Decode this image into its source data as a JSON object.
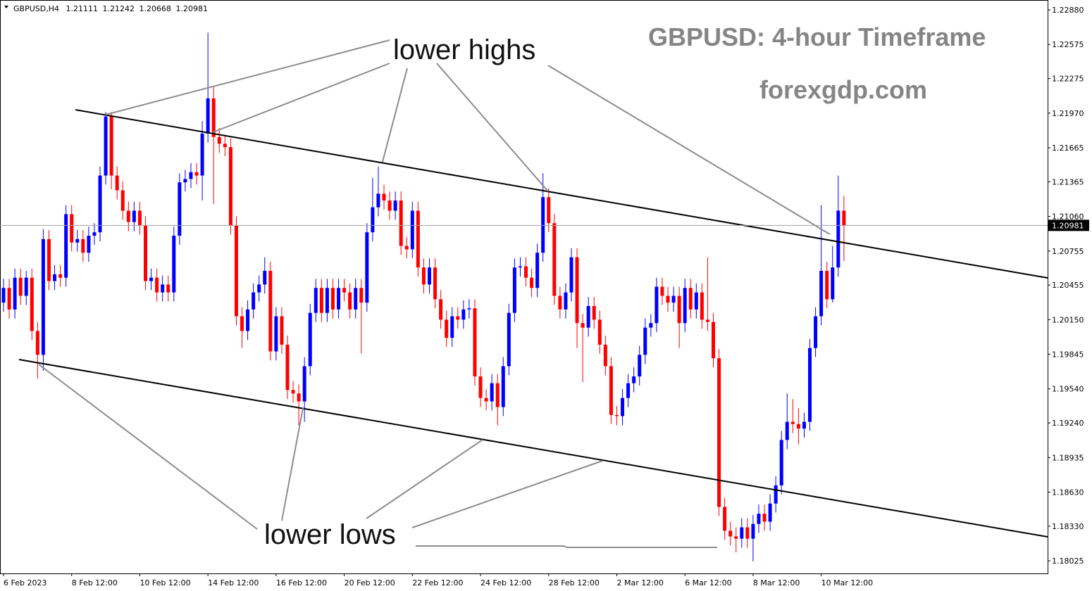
{
  "header": {
    "symbol": "GBPUSD,H4",
    "ohlc": [
      1.21111,
      1.21242,
      1.20668,
      1.20981
    ]
  },
  "chart_data": {
    "type": "candlestick",
    "title": "GBPUSD: 4-hour Timeframe",
    "subtitle": "forexgdp.com",
    "annotations": [
      "lower highs",
      "lower lows"
    ],
    "colors": {
      "up": "#0000ff",
      "down": "#ff0000"
    },
    "grid": false,
    "last_price": 1.20981,
    "ylim": [
      1.17914,
      1.22967
    ],
    "yticks": [
      {
        "value": 1.2288,
        "label": "1.22880"
      },
      1.22575,
      1.22275,
      {
        "value": 1.2197,
        "label": "1.21970"
      },
      1.21665,
      1.21365,
      {
        "value": 1.2106,
        "label": "1.21060"
      },
      1.20755,
      1.20455,
      {
        "value": 1.2015,
        "label": "1.20150"
      },
      1.19845,
      {
        "value": 1.1954,
        "label": "1.19540"
      },
      {
        "value": 1.1924,
        "label": "1.19240"
      },
      1.18935,
      {
        "value": 1.1863,
        "label": "1.18630"
      },
      {
        "value": 1.1833,
        "label": "1.18330"
      },
      1.18025
    ],
    "categories": [
      "6 Feb 2023",
      null,
      null,
      null,
      null,
      null,
      null,
      null,
      null,
      null,
      null,
      null,
      "8 Feb 12:00",
      null,
      null,
      null,
      null,
      null,
      null,
      null,
      null,
      null,
      null,
      null,
      "10 Feb 12:00",
      null,
      null,
      null,
      null,
      null,
      null,
      null,
      null,
      null,
      null,
      null,
      "14 Feb 12:00",
      null,
      null,
      null,
      null,
      null,
      null,
      null,
      null,
      null,
      null,
      null,
      "16 Feb 12:00",
      null,
      null,
      null,
      null,
      null,
      null,
      null,
      null,
      null,
      null,
      null,
      "20 Feb 12:00",
      null,
      null,
      null,
      null,
      null,
      null,
      null,
      null,
      null,
      null,
      null,
      "22 Feb 12:00",
      null,
      null,
      null,
      null,
      null,
      null,
      null,
      null,
      null,
      null,
      null,
      "24 Feb 12:00",
      null,
      null,
      null,
      null,
      null,
      null,
      null,
      null,
      null,
      null,
      null,
      "28 Feb 12:00",
      null,
      null,
      null,
      null,
      null,
      null,
      null,
      null,
      null,
      null,
      null,
      "2 Mar 12:00",
      null,
      null,
      null,
      null,
      null,
      null,
      null,
      null,
      null,
      null,
      null,
      "6 Mar 12:00",
      null,
      null,
      null,
      null,
      null,
      null,
      null,
      null,
      null,
      null,
      null,
      "8 Mar 12:00",
      null,
      null,
      null,
      null,
      null,
      null,
      null,
      null,
      null,
      null,
      null,
      "10 Mar 12:00",
      null,
      null,
      null,
      null
    ],
    "open": [
      1.203,
      1.2043,
      1.2024,
      1.2052,
      1.2036,
      1.2052,
      1.2005,
      1.1984,
      1.2086,
      1.2049,
      1.2055,
      1.2052,
      1.2108,
      1.2083,
      1.2086,
      1.2074,
      1.2089,
      1.2092,
      1.2142,
      1.2194,
      1.2142,
      1.2129,
      1.2111,
      1.2101,
      1.2111,
      1.2098,
      1.2049,
      1.2052,
      1.2039,
      1.2046,
      1.2039,
      1.2089,
      1.2136,
      1.2139,
      1.2145,
      1.2142,
      1.2179,
      1.221,
      1.2176,
      1.217,
      1.2167,
      1.2098,
      1.2018,
      1.2005,
      1.2024,
      1.2039,
      1.2046,
      1.2058,
      1.1987,
      1.2018,
      1.1993,
      1.1953,
      1.195,
      1.1943,
      1.1974,
      1.2021,
      1.2043,
      1.2021,
      1.2043,
      1.2024,
      1.2043,
      1.2039,
      1.2024,
      1.2043,
      1.203,
      1.2092,
      1.2114,
      1.2126,
      1.212,
      1.2111,
      1.212,
      1.208,
      1.2077,
      1.2111,
      1.2061,
      1.2046,
      1.2061,
      1.2033,
      1.2015,
      1.1999,
      1.2018,
      1.2015,
      1.2024,
      1.2025,
      1.1965,
      1.1946,
      1.1943,
      1.1959,
      1.1938,
      1.1974,
      1.2021,
      1.2061,
      1.2062,
      1.2052,
      1.2043,
      1.2074,
      1.2123,
      1.21,
      1.2036,
      1.2024,
      1.2039,
      1.207,
      1.2012,
      1.2008,
      1.2027,
      1.2015,
      1.1993,
      1.1974,
      1.1931,
      1.193,
      1.1946,
      1.1959,
      1.1965,
      1.1984,
      1.2008,
      1.2012,
      1.2044,
      1.2036,
      1.203,
      1.2036,
      1.2012,
      1.2043,
      1.2024,
      1.2039,
      1.2015,
      1.2013,
      1.1981,
      1.185,
      1.1829,
      1.1824,
      1.1822,
      1.1832,
      1.1822,
      1.1835,
      1.1844,
      1.1837,
      1.1853,
      1.1869,
      1.1909,
      1.1925,
      1.1923,
      1.1919,
      1.1925,
      1.199,
      1.2018,
      1.2058,
      1.2033,
      1.2061,
      1.21111
    ],
    "high": [
      1.2051,
      1.2051,
      1.206,
      1.206,
      1.2058,
      1.206,
      1.2013,
      1.2095,
      1.2094,
      1.2063,
      1.2063,
      1.2116,
      1.2116,
      1.2094,
      1.2094,
      1.2097,
      1.21,
      1.215,
      1.2198,
      1.2198,
      1.215,
      1.2137,
      1.2119,
      1.2119,
      1.2119,
      1.2106,
      1.206,
      1.206,
      1.2054,
      1.2054,
      1.2097,
      1.2144,
      1.2147,
      1.2153,
      1.2153,
      1.219,
      1.2268,
      1.222,
      1.2184,
      1.2178,
      1.2175,
      1.2106,
      1.2026,
      1.2032,
      1.2047,
      1.2054,
      1.207,
      1.2066,
      1.2026,
      1.2026,
      1.2001,
      1.1961,
      1.1958,
      1.1982,
      1.2029,
      1.2051,
      1.2051,
      1.2051,
      1.2051,
      1.2051,
      1.2051,
      1.2047,
      1.2051,
      1.2051,
      1.21,
      1.214,
      1.215,
      1.2134,
      1.2128,
      1.2128,
      1.2128,
      1.2088,
      1.2119,
      1.2119,
      1.2069,
      1.2069,
      1.2069,
      1.2041,
      1.2023,
      1.2026,
      1.2026,
      1.2032,
      1.2033,
      1.2033,
      1.1973,
      1.1954,
      1.1967,
      1.1967,
      1.1982,
      1.2029,
      1.2069,
      1.207,
      1.207,
      1.206,
      1.2082,
      1.2144,
      1.2131,
      1.2108,
      1.2044,
      1.2047,
      1.2078,
      1.2078,
      1.202,
      1.2035,
      1.2035,
      1.2023,
      1.2001,
      1.1982,
      1.1939,
      1.1954,
      1.1967,
      1.1973,
      1.1992,
      1.2016,
      1.202,
      1.2052,
      1.2052,
      1.2044,
      1.2044,
      1.2044,
      1.2051,
      1.2051,
      1.2047,
      1.2047,
      1.207,
      1.2021,
      1.1989,
      1.1858,
      1.1837,
      1.1832,
      1.184,
      1.184,
      1.1843,
      1.1852,
      1.1852,
      1.1861,
      1.1877,
      1.1917,
      1.195,
      1.1945,
      1.1937,
      1.1933,
      1.1998,
      1.2026,
      1.2116,
      1.2066,
      1.208,
      1.2142,
      1.21242
    ],
    "low": [
      1.2022,
      1.2016,
      1.2016,
      1.2028,
      1.2028,
      1.1997,
      1.1963,
      1.197,
      1.2041,
      1.2041,
      1.2044,
      1.2044,
      1.2075,
      1.2075,
      1.2066,
      1.2066,
      1.2081,
      1.2084,
      1.2134,
      1.213,
      1.2121,
      1.2103,
      1.2093,
      1.2093,
      1.209,
      1.2041,
      1.2041,
      1.2031,
      1.2031,
      1.2031,
      1.2031,
      1.2081,
      1.2128,
      1.2131,
      1.2134,
      1.212,
      1.2171,
      1.2117,
      1.2162,
      1.2159,
      1.209,
      1.201,
      1.199,
      1.1997,
      1.2016,
      1.2031,
      1.2038,
      1.1979,
      1.1979,
      1.1985,
      1.1945,
      1.1942,
      1.1922,
      1.1925,
      1.1966,
      1.2013,
      1.2013,
      1.2013,
      1.2016,
      1.2016,
      1.2031,
      1.2016,
      1.2016,
      1.1985,
      1.2022,
      1.2084,
      1.2106,
      1.2112,
      1.2103,
      1.2103,
      1.2072,
      1.2069,
      1.2069,
      1.2053,
      1.2038,
      1.2038,
      1.2025,
      1.2007,
      1.1991,
      1.1991,
      1.2007,
      1.2007,
      1.2016,
      1.1957,
      1.1938,
      1.1935,
      1.1935,
      1.1922,
      1.193,
      1.1966,
      1.2013,
      1.2053,
      1.2044,
      1.2035,
      1.2035,
      1.2066,
      1.2092,
      1.2028,
      1.2016,
      1.2016,
      1.2031,
      1.199,
      1.196,
      1.2,
      1.2007,
      1.1985,
      1.1966,
      1.1923,
      1.1922,
      1.1922,
      1.1938,
      1.1951,
      1.1957,
      1.1976,
      1.2,
      1.2004,
      1.2028,
      1.2022,
      1.2022,
      1.199,
      1.2004,
      1.2016,
      1.2016,
      1.2007,
      1.2005,
      1.1973,
      1.1842,
      1.1821,
      1.1816,
      1.181,
      1.1814,
      1.1814,
      1.1802,
      1.1827,
      1.1829,
      1.1829,
      1.1845,
      1.1861,
      1.1901,
      1.1915,
      1.1905,
      1.1911,
      1.1917,
      1.1982,
      1.201,
      1.2025,
      1.203,
      1.2053,
      1.20668
    ],
    "close": [
      1.2043,
      1.2024,
      1.2052,
      1.2036,
      1.2052,
      1.2005,
      1.1984,
      1.2086,
      1.2049,
      1.2055,
      1.2052,
      1.2108,
      1.2083,
      1.2086,
      1.2074,
      1.2089,
      1.2092,
      1.2142,
      1.2194,
      1.2142,
      1.2129,
      1.2111,
      1.2101,
      1.2111,
      1.2098,
      1.2049,
      1.2052,
      1.2039,
      1.2046,
      1.2039,
      1.2089,
      1.2136,
      1.2139,
      1.2145,
      1.2142,
      1.2179,
      1.221,
      1.2176,
      1.217,
      1.2167,
      1.2098,
      1.2018,
      1.2005,
      1.2024,
      1.2039,
      1.2046,
      1.2058,
      1.1987,
      1.2018,
      1.1993,
      1.1953,
      1.195,
      1.1943,
      1.1974,
      1.2021,
      1.2043,
      1.2021,
      1.2043,
      1.2024,
      1.2043,
      1.2039,
      1.2024,
      1.2043,
      1.203,
      1.2092,
      1.2114,
      1.2126,
      1.212,
      1.2111,
      1.212,
      1.208,
      1.2077,
      1.2111,
      1.2061,
      1.2046,
      1.2061,
      1.2033,
      1.2015,
      1.1999,
      1.2018,
      1.2015,
      1.2024,
      1.2025,
      1.1965,
      1.1946,
      1.1943,
      1.1959,
      1.1938,
      1.1974,
      1.2021,
      1.2061,
      1.2062,
      1.2052,
      1.2043,
      1.2074,
      1.2123,
      1.21,
      1.2036,
      1.2024,
      1.2039,
      1.207,
      1.2012,
      1.2008,
      1.2027,
      1.2015,
      1.1993,
      1.1974,
      1.1931,
      1.193,
      1.1946,
      1.1959,
      1.1965,
      1.1984,
      1.2008,
      1.2012,
      1.2044,
      1.2036,
      1.203,
      1.2036,
      1.2012,
      1.2043,
      1.2024,
      1.2039,
      1.2015,
      1.2013,
      1.1981,
      1.185,
      1.1829,
      1.1824,
      1.1822,
      1.1832,
      1.1822,
      1.1835,
      1.1844,
      1.1837,
      1.1853,
      1.1869,
      1.1909,
      1.1925,
      1.1923,
      1.1919,
      1.1925,
      1.199,
      1.2018,
      1.2058,
      1.2033,
      1.2061,
      1.21111,
      1.20981
    ]
  }
}
